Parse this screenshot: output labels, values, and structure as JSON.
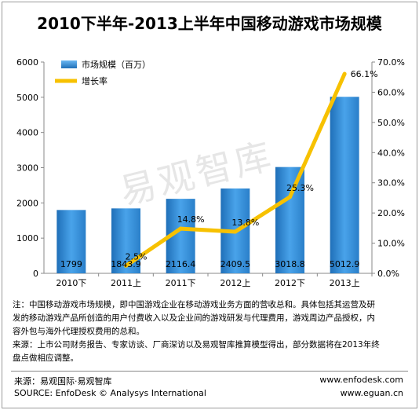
{
  "title": "2010下半年-2013上半年中国移动游戏市场规模",
  "watermark": "易观智库",
  "colors": {
    "bar": "#2e86d0",
    "bar_light": "#8cc7f5",
    "line": "#f7c100",
    "axis": "#888888"
  },
  "chart_data": {
    "type": "bar",
    "categories": [
      "2010下",
      "2011上",
      "2011下",
      "2012上",
      "2012下",
      "2013上"
    ],
    "series": [
      {
        "name": "市场规模（百万）",
        "type": "bar",
        "axis": "left",
        "values": [
          1799,
          1843.9,
          2116.4,
          2409.5,
          3018.8,
          5012.9
        ],
        "labels": [
          "1799",
          "1843.9",
          "2116.4",
          "2409.5",
          "3018.8",
          "5012.9"
        ]
      },
      {
        "name": "增长率",
        "type": "line",
        "axis": "right",
        "values": [
          null,
          2.5,
          14.8,
          13.8,
          25.3,
          66.1
        ],
        "labels": [
          "",
          "2.5%",
          "14.8%",
          "13.8%",
          "25.3%",
          "66.1%"
        ]
      }
    ],
    "y_left": {
      "min": 0,
      "max": 6000,
      "ticks": [
        "0",
        "1000",
        "2000",
        "3000",
        "4000",
        "5000",
        "6000"
      ]
    },
    "y_right": {
      "min": 0,
      "max": 70,
      "ticks": [
        "0.0%",
        "10.0%",
        "20.0%",
        "30.0%",
        "40.0%",
        "50.0%",
        "60.0%",
        "70.0%"
      ]
    },
    "legend_position": "top-left",
    "grid": false
  },
  "note_lines": [
    "注：中国移动游戏市场规模，即中国游戏企业在移动游戏业务方面的营收总和。具体包括其运营及研",
    "发的移动游戏产品所创造的用户付费收入以及企业间的游戏研发与代理费用，游戏周边产品授权，内",
    "容外包与海外代理授权费用的总和。",
    "来源：上市公司财务报告、专家访谈、厂商深访以及易观智库推算模型得出，部分数据将在2013年终",
    "盘点做相应调整。"
  ],
  "footer": {
    "source_cn": "来源：易观国际·易观智库",
    "source_en": "SOURCE: EnfoDesk © Analysys International",
    "url1": "www.enfodesk.com",
    "url2": "www.eguan.cn"
  }
}
